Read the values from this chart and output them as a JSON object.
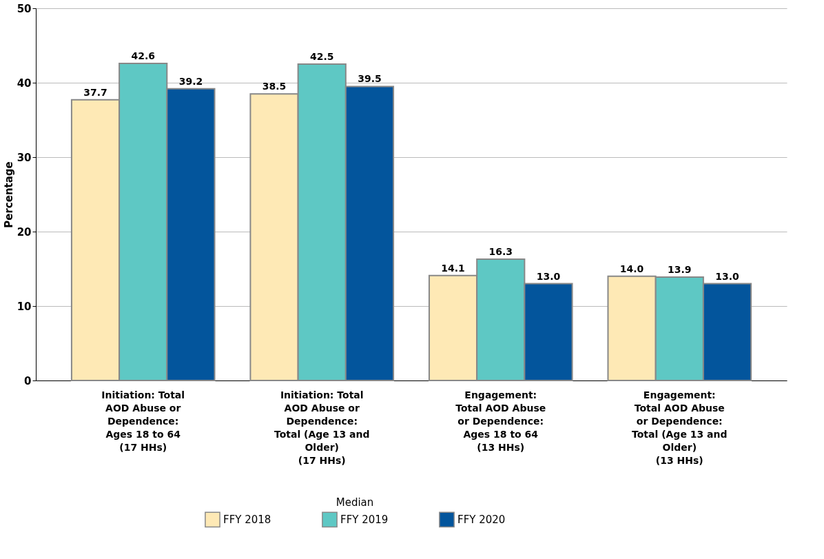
{
  "chart_data": {
    "type": "bar",
    "ylabel": "Percentage",
    "legend_title": "Median",
    "categories": [
      "Initiation: Total\nAOD Abuse or\nDependence:\nAges 18 to 64\n(17 HHs)",
      "Initiation: Total\nAOD Abuse or\nDependence:\nTotal (Age 13 and\nOlder)\n(17 HHs)",
      "Engagement:\nTotal AOD Abuse\nor Dependence:\nAges 18 to 64\n(13 HHs)",
      "Engagement:\nTotal AOD Abuse\nor Dependence:\nTotal (Age 13 and\nOlder)\n(13 HHs)"
    ],
    "series": [
      {
        "name": "FFY 2018",
        "color": "#fee9b5",
        "values": [
          37.7,
          38.5,
          14.1,
          14.0
        ],
        "value_labels": [
          "37.7",
          "38.5",
          "14.1",
          "14.0"
        ]
      },
      {
        "name": "FFY 2019",
        "color": "#5ec8c4",
        "values": [
          42.6,
          42.5,
          16.3,
          13.9
        ],
        "value_labels": [
          "42.6",
          "42.5",
          "16.3",
          "13.9"
        ]
      },
      {
        "name": "FFY 2020",
        "color": "#03559c",
        "values": [
          39.2,
          39.5,
          13.0,
          13.0
        ],
        "value_labels": [
          "39.2",
          "39.5",
          "13.0",
          "13.0"
        ]
      }
    ],
    "ylim": [
      0,
      50
    ],
    "yticks": [
      0,
      10,
      20,
      30,
      40,
      50
    ],
    "grid": "y",
    "legend": "bottom"
  }
}
